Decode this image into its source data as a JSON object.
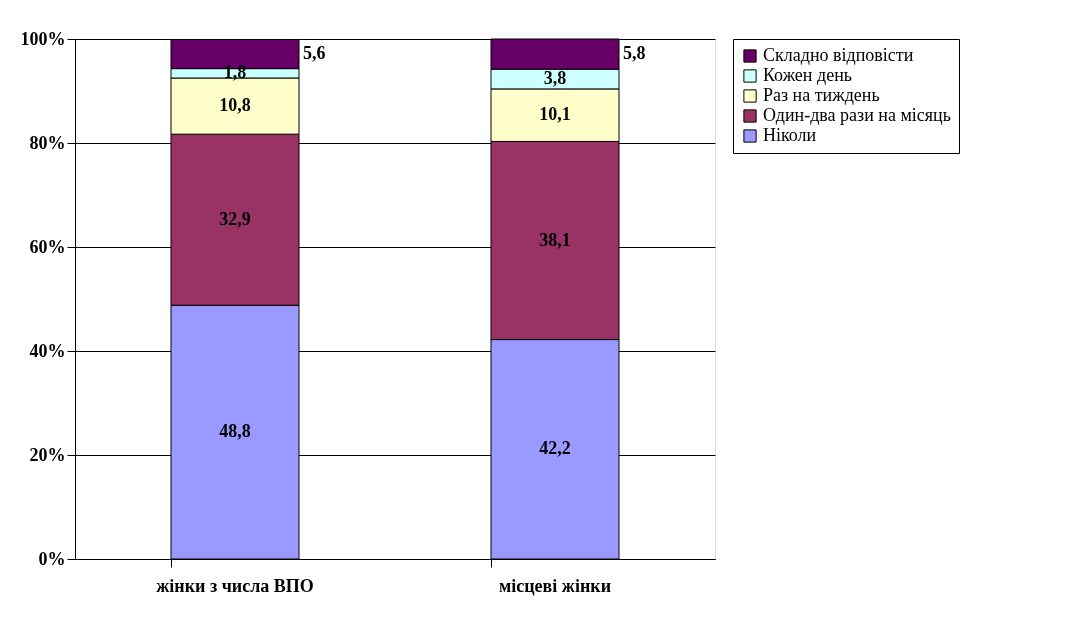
{
  "chart_data": {
    "type": "bar",
    "stacked": true,
    "categories": [
      "жінки з числа ВПО",
      "місцеві жінки"
    ],
    "series": [
      {
        "name": "Ніколи",
        "color": "#9999ff",
        "values": [
          48.8,
          42.2
        ],
        "value_labels": [
          "48,8",
          "42,2"
        ]
      },
      {
        "name": "Один-два рази на місяць",
        "color": "#993366",
        "values": [
          32.9,
          38.1
        ],
        "value_labels": [
          "32,9",
          "38,1"
        ]
      },
      {
        "name": "Раз на тиждень",
        "color": "#ffffcc",
        "values": [
          10.8,
          10.1
        ],
        "value_labels": [
          "10,8",
          "10,1"
        ]
      },
      {
        "name": "Кожен день",
        "color": "#ccffff",
        "values": [
          1.8,
          3.8
        ],
        "value_labels": [
          "1,8",
          "3,8"
        ]
      },
      {
        "name": "Складно відповісти",
        "color": "#660066",
        "values": [
          5.6,
          5.8
        ],
        "value_labels": [
          "5,6",
          "5,8"
        ]
      }
    ],
    "ylim": [
      0,
      100
    ],
    "yticks": [
      {
        "value": 0,
        "label": "0%"
      },
      {
        "value": 20,
        "label": "20%"
      },
      {
        "value": 40,
        "label": "40%"
      },
      {
        "value": 60,
        "label": "60%"
      },
      {
        "value": 80,
        "label": "80%"
      },
      {
        "value": 100,
        "label": "100%"
      }
    ],
    "grid": "y",
    "legend": "right"
  }
}
